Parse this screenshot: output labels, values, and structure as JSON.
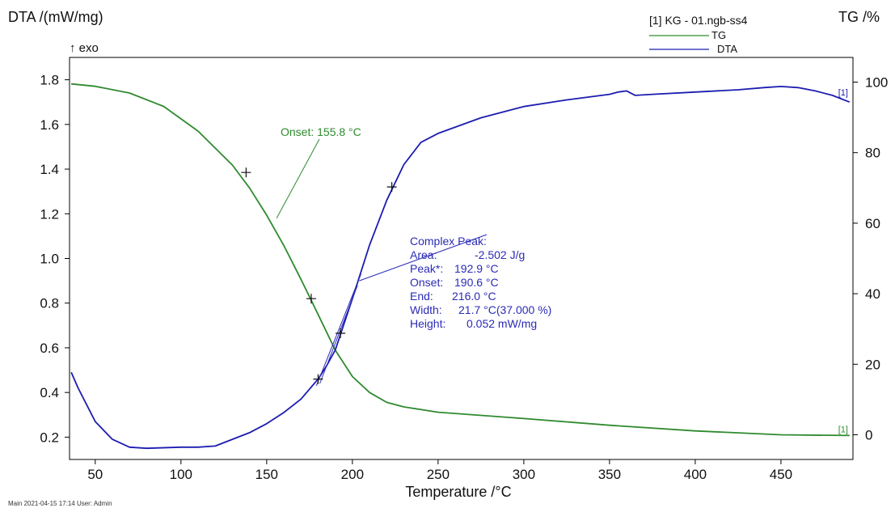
{
  "chart_data": {
    "type": "line",
    "title": "",
    "xlabel": "Temperature /°C",
    "ylabel_left": "DTA /(mW/mg)",
    "ylabel_right": "TG /%",
    "exo_label": "↑ exo",
    "xlim": [
      35,
      492
    ],
    "ylim_left": [
      0.1,
      1.9
    ],
    "ylim_right": [
      -7,
      107
    ],
    "x_ticks": [
      50,
      100,
      150,
      200,
      250,
      300,
      350,
      400,
      450
    ],
    "y_left_ticks": [
      0.2,
      0.4,
      0.6,
      0.8,
      1.0,
      1.2,
      1.4,
      1.6,
      1.8
    ],
    "y_left_tick_labels": [
      "0.2",
      "0.4",
      "0.6",
      "0.8",
      "1.0",
      "1.2",
      "1.4",
      "1.6",
      "1.8"
    ],
    "y_right_ticks": [
      0,
      20,
      40,
      60,
      80,
      100
    ],
    "legend_title": "[1] KG - 01.ngb-ss4",
    "legend_position": "top-right",
    "series": [
      {
        "name": "TG",
        "axis": "right",
        "color": "#2f8a2f",
        "end_label": "[1]",
        "x": [
          36,
          50,
          70,
          90,
          110,
          130,
          140,
          150,
          160,
          170,
          180,
          190,
          200,
          210,
          220,
          230,
          250,
          300,
          350,
          400,
          450,
          490
        ],
        "y": [
          99.5,
          98.8,
          96.9,
          93.1,
          86.1,
          76.5,
          70.0,
          62.3,
          53.7,
          44.1,
          34.1,
          24.0,
          16.5,
          12.0,
          9.2,
          7.9,
          6.4,
          4.6,
          2.7,
          1.1,
          0.0,
          -0.2
        ]
      },
      {
        "name": "DTA",
        "axis": "left",
        "color": "#1c1cb0",
        "end_label": "[1]",
        "x": [
          36,
          40,
          50,
          60,
          70,
          80,
          100,
          110,
          120,
          130,
          140,
          150,
          160,
          170,
          180,
          185,
          190,
          200,
          210,
          220,
          230,
          240,
          250,
          275,
          300,
          325,
          350,
          355,
          360,
          365,
          375,
          400,
          425,
          440,
          450,
          460,
          470,
          480,
          490
        ],
        "y": [
          0.49,
          0.42,
          0.27,
          0.19,
          0.155,
          0.15,
          0.155,
          0.155,
          0.16,
          0.19,
          0.22,
          0.26,
          0.31,
          0.37,
          0.46,
          0.52,
          0.59,
          0.82,
          1.06,
          1.26,
          1.42,
          1.52,
          1.56,
          1.63,
          1.68,
          1.71,
          1.735,
          1.745,
          1.75,
          1.73,
          1.735,
          1.745,
          1.755,
          1.765,
          1.77,
          1.765,
          1.75,
          1.73,
          1.7
        ]
      }
    ],
    "annotations": [
      {
        "text": "Onset: 155.8 °C",
        "color": "#2f8a2f",
        "marker_points": [
          [
            138,
            1.385
          ],
          [
            176,
            0.82
          ],
          [
            193,
            0.665
          ]
        ],
        "onset_x": 155.8,
        "onset_y": 1.18
      },
      {
        "color": "#2b2bb8",
        "lines": [
          "Complex Peak:",
          "Area:",
          "-2.502 J/g",
          "Peak*:",
          "192.9 °C",
          "Onset:",
          "190.6 °C",
          "End:",
          "216.0 °C",
          "Width:",
          "21.7 °C(37.000 %)",
          "Height:",
          "0.052 mW/mg"
        ],
        "marker_points": [
          [
            223,
            1.32
          ],
          [
            180,
            0.46
          ]
        ]
      }
    ],
    "footer": "Main   2021-04-15 17:14   User: Admin"
  }
}
